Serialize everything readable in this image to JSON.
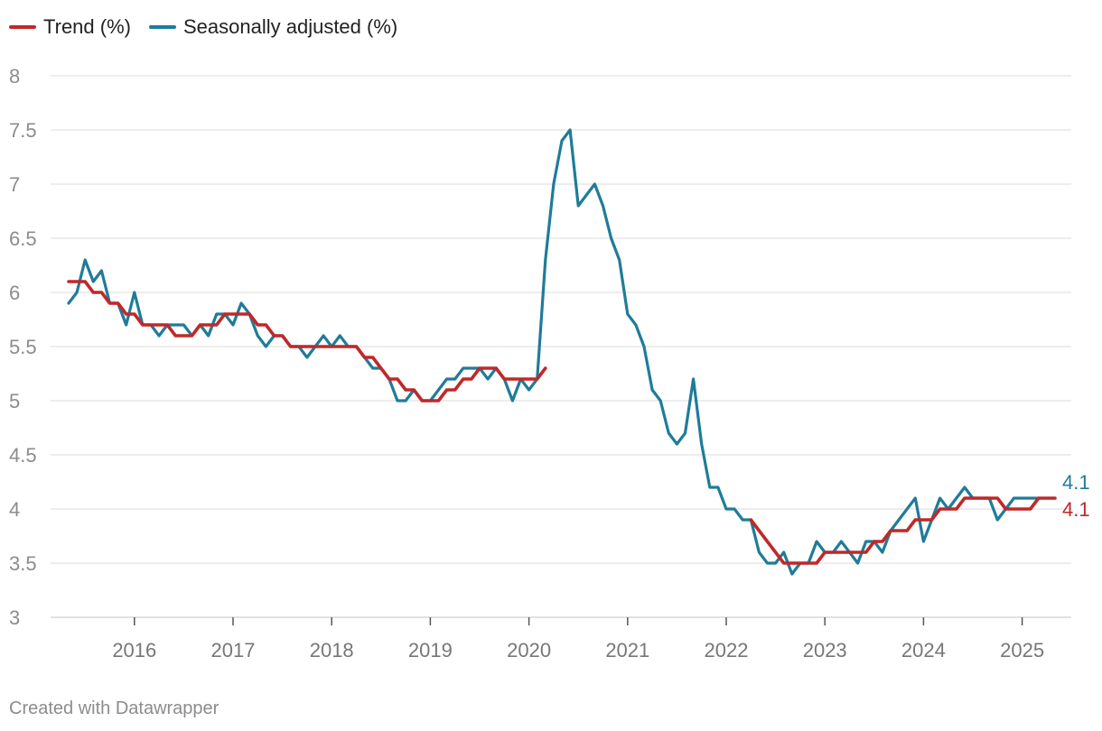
{
  "legend": [
    {
      "name": "Trend (%)",
      "color": "#c0282a"
    },
    {
      "name": "Seasonally adjusted (%)",
      "color": "#1f7c98"
    }
  ],
  "footer": "Created with Datawrapper",
  "chart_data": {
    "type": "line",
    "title": "",
    "xlabel": "",
    "ylabel": "",
    "ylim": [
      3,
      8
    ],
    "yticks": [
      "3",
      "3.5",
      "4",
      "4.5",
      "5",
      "5.5",
      "6",
      "6.5",
      "7",
      "7.5",
      "8"
    ],
    "xticks": [
      2016,
      2017,
      2018,
      2019,
      2020,
      2021,
      2022,
      2023,
      2024,
      2025
    ],
    "start": "2015-05",
    "frequency": "monthly",
    "series": [
      {
        "name": "Seasonally adjusted (%)",
        "color": "#1f7c98",
        "end_label": "4.1",
        "values": [
          5.9,
          6.0,
          6.3,
          6.1,
          6.2,
          5.9,
          5.9,
          5.7,
          6.0,
          5.7,
          5.7,
          5.6,
          5.7,
          5.7,
          5.7,
          5.6,
          5.7,
          5.6,
          5.8,
          5.8,
          5.7,
          5.9,
          5.8,
          5.6,
          5.5,
          5.6,
          5.6,
          5.5,
          5.5,
          5.4,
          5.5,
          5.6,
          5.5,
          5.6,
          5.5,
          5.5,
          5.4,
          5.3,
          5.3,
          5.2,
          5.0,
          5.0,
          5.1,
          5.0,
          5.0,
          5.1,
          5.2,
          5.2,
          5.3,
          5.3,
          5.3,
          5.2,
          5.3,
          5.2,
          5.0,
          5.2,
          5.1,
          5.2,
          6.3,
          7.0,
          7.4,
          7.5,
          6.8,
          6.9,
          7.0,
          6.8,
          6.5,
          6.3,
          5.8,
          5.7,
          5.5,
          5.1,
          5.0,
          4.7,
          4.6,
          4.7,
          5.2,
          4.6,
          4.2,
          4.2,
          4.0,
          4.0,
          3.9,
          3.9,
          3.6,
          3.5,
          3.5,
          3.6,
          3.4,
          3.5,
          3.5,
          3.7,
          3.6,
          3.6,
          3.7,
          3.6,
          3.5,
          3.7,
          3.7,
          3.6,
          3.8,
          3.9,
          4.0,
          4.1,
          3.7,
          3.9,
          4.1,
          4.0,
          4.1,
          4.2,
          4.1,
          4.1,
          4.1,
          3.9,
          4.0,
          4.1,
          4.1,
          4.1,
          4.1
        ]
      },
      {
        "name": "Trend (%)",
        "color": "#c0282a",
        "end_label": "4.1",
        "values": [
          6.1,
          6.1,
          6.1,
          6.0,
          6.0,
          5.9,
          5.9,
          5.8,
          5.8,
          5.7,
          5.7,
          5.7,
          5.7,
          5.6,
          5.6,
          5.6,
          5.7,
          5.7,
          5.7,
          5.8,
          5.8,
          5.8,
          5.8,
          5.7,
          5.7,
          5.6,
          5.6,
          5.5,
          5.5,
          5.5,
          5.5,
          5.5,
          5.5,
          5.5,
          5.5,
          5.5,
          5.4,
          5.4,
          5.3,
          5.2,
          5.2,
          5.1,
          5.1,
          5.0,
          5.0,
          5.0,
          5.1,
          5.1,
          5.2,
          5.2,
          5.3,
          5.3,
          5.3,
          5.2,
          5.2,
          5.2,
          5.2,
          5.2,
          5.3,
          null,
          null,
          null,
          null,
          null,
          null,
          null,
          null,
          null,
          null,
          null,
          null,
          null,
          null,
          null,
          null,
          null,
          null,
          null,
          null,
          null,
          null,
          null,
          null,
          3.9,
          3.8,
          3.7,
          3.6,
          3.5,
          3.5,
          3.5,
          3.5,
          3.5,
          3.6,
          3.6,
          3.6,
          3.6,
          3.6,
          3.6,
          3.7,
          3.7,
          3.8,
          3.8,
          3.8,
          3.9,
          3.9,
          3.9,
          4.0,
          4.0,
          4.0,
          4.1,
          4.1,
          4.1,
          4.1,
          4.1,
          4.0,
          4.0,
          4.0,
          4.0,
          4.1,
          4.1,
          4.1
        ]
      }
    ]
  }
}
